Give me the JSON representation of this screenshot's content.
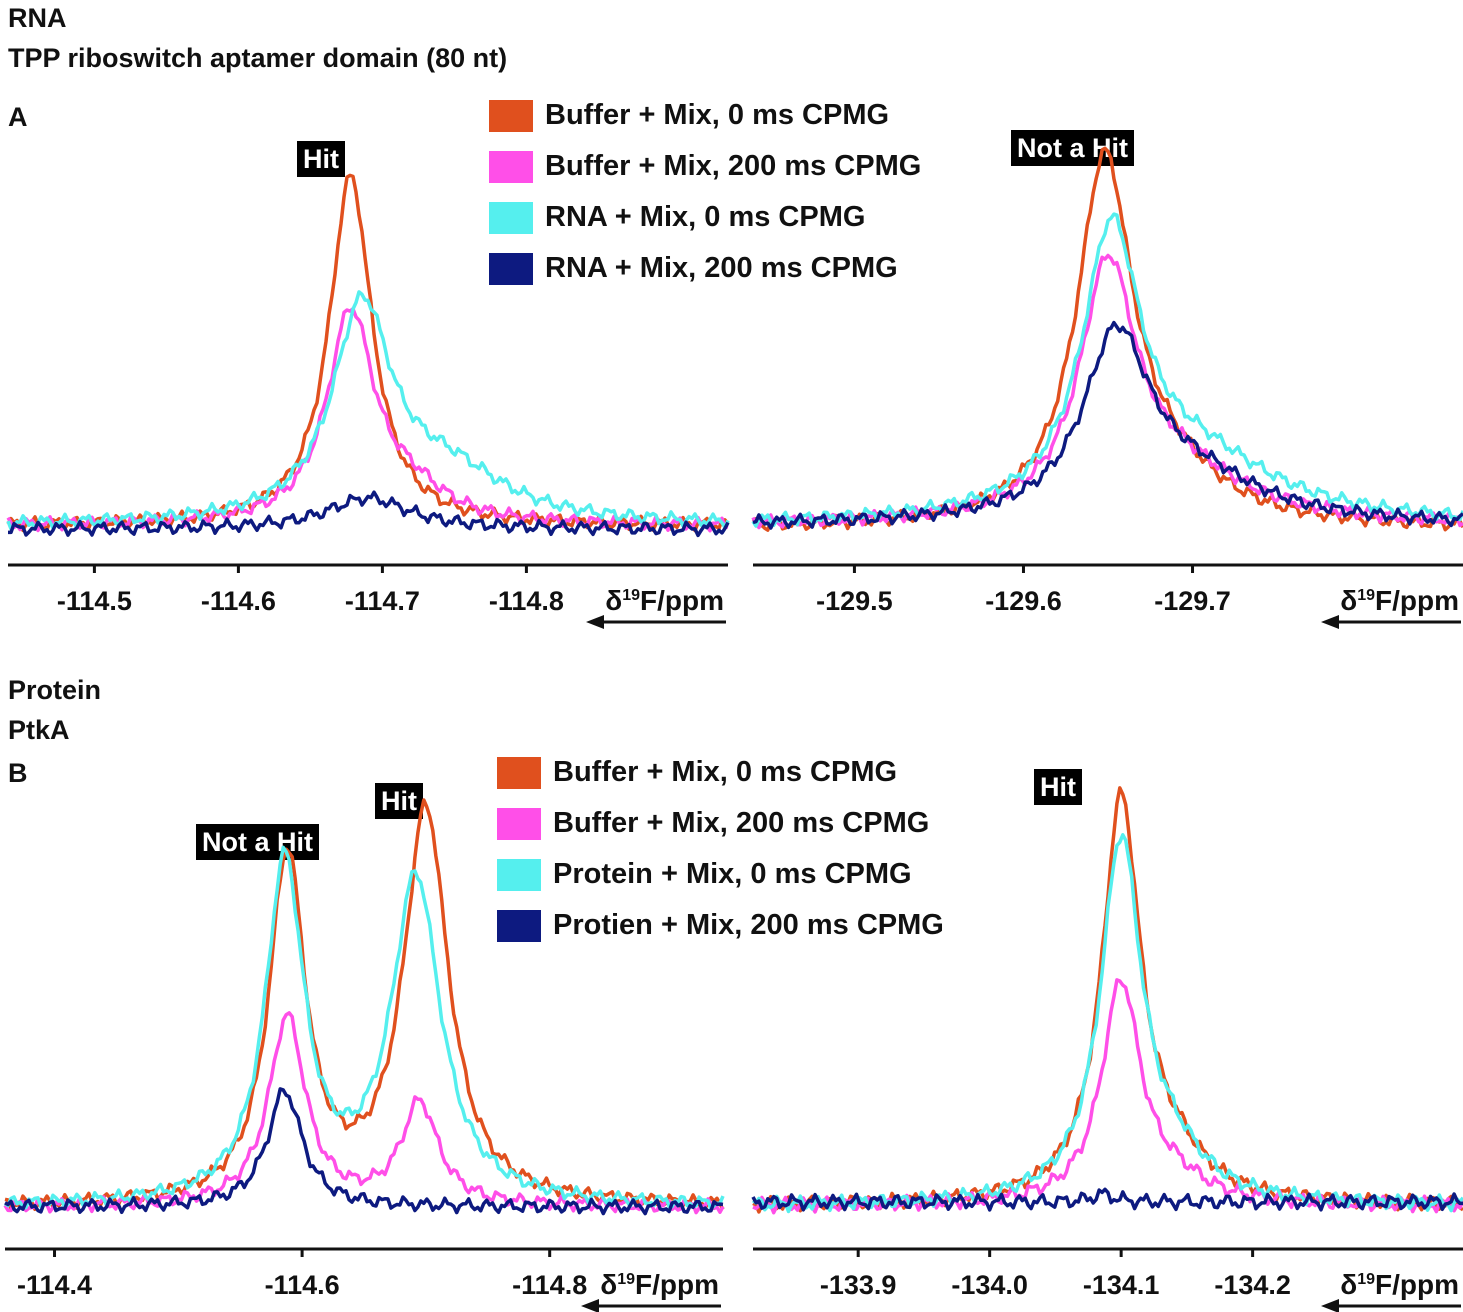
{
  "panelA": {
    "title1": "RNA",
    "title2": "TPP riboswitch aptamer domain (80 nt)",
    "letter": "A",
    "legend": [
      {
        "label": "Buffer + Mix, 0 ms CPMG",
        "color": "#e0501e"
      },
      {
        "label": "Buffer + Mix, 200 ms CPMG",
        "color": "#ff4fe8"
      },
      {
        "label": "RNA + Mix, 0 ms CPMG",
        "color": "#55efee"
      },
      {
        "label": "RNA + Mix,  200 ms CPMG",
        "color": "#0d1a80"
      }
    ]
  },
  "panelB": {
    "title1": "Protein",
    "title2": "PtkA",
    "letter": "B",
    "legend": [
      {
        "label": "Buffer + Mix, 0 ms CPMG",
        "color": "#e0501e"
      },
      {
        "label": "Buffer + Mix, 200 ms CPMG",
        "color": "#ff4fe8"
      },
      {
        "label": "Protein + Mix, 0 ms CPMG",
        "color": "#55efee"
      },
      {
        "label": "Protien + Mix,  200 ms CPMG",
        "color": "#0d1a80"
      }
    ]
  },
  "chart_data": [
    {
      "id": "A-left",
      "type": "line",
      "xlabel": "δ19F/ppm",
      "xlim": [
        -114.44,
        -114.94
      ],
      "reversed_axis": true,
      "ticks": [
        -114.5,
        -114.6,
        -114.7,
        -114.8
      ],
      "tick_labels": [
        "-114.5",
        "-114.6",
        "-114.7",
        "-114.8"
      ],
      "annotation": "Hit",
      "series": [
        {
          "name": "Buffer + Mix, 0 ms CPMG",
          "color": "#e0501e",
          "baseline": 0.04,
          "peaks": [
            {
              "center": -114.678,
              "height": 1.0,
              "width": 0.018
            }
          ]
        },
        {
          "name": "Buffer + Mix, 200 ms CPMG",
          "color": "#ff4fe8",
          "baseline": 0.04,
          "peaks": [
            {
              "center": -114.678,
              "height": 0.6,
              "width": 0.02
            },
            {
              "center": -114.72,
              "height": 0.08,
              "width": 0.03
            }
          ]
        },
        {
          "name": "RNA + Mix, 0 ms CPMG",
          "color": "#55efee",
          "baseline": 0.04,
          "peaks": [
            {
              "center": -114.686,
              "height": 0.6,
              "width": 0.025
            },
            {
              "center": -114.745,
              "height": 0.14,
              "width": 0.05
            }
          ]
        },
        {
          "name": "RNA + Mix,  200 ms CPMG",
          "color": "#0d1a80",
          "baseline": 0.03,
          "peaks": [
            {
              "center": -114.69,
              "height": 0.09,
              "width": 0.035
            }
          ]
        }
      ]
    },
    {
      "id": "A-right",
      "type": "line",
      "xlabel": "δ19F/ppm",
      "xlim": [
        -129.44,
        -129.86
      ],
      "reversed_axis": true,
      "ticks": [
        -129.5,
        -129.6,
        -129.7
      ],
      "tick_labels": [
        "-129.5",
        "-129.6",
        "-129.7"
      ],
      "annotation": "Not a Hit",
      "series": [
        {
          "name": "Buffer + Mix, 0 ms CPMG",
          "color": "#e0501e",
          "baseline": 0.03,
          "peaks": [
            {
              "center": -129.648,
              "height": 1.0,
              "width": 0.02
            },
            {
              "center": -129.685,
              "height": 0.12,
              "width": 0.04
            }
          ]
        },
        {
          "name": "Buffer + Mix, 200 ms CPMG",
          "color": "#ff4fe8",
          "baseline": 0.04,
          "peaks": [
            {
              "center": -129.65,
              "height": 0.68,
              "width": 0.02
            },
            {
              "center": -129.69,
              "height": 0.14,
              "width": 0.05
            }
          ]
        },
        {
          "name": "RNA + Mix, 0 ms CPMG",
          "color": "#55efee",
          "baseline": 0.04,
          "peaks": [
            {
              "center": -129.652,
              "height": 0.76,
              "width": 0.021
            },
            {
              "center": -129.7,
              "height": 0.18,
              "width": 0.06
            }
          ]
        },
        {
          "name": "RNA + Mix,  200 ms CPMG",
          "color": "#0d1a80",
          "baseline": 0.04,
          "peaks": [
            {
              "center": -129.655,
              "height": 0.5,
              "width": 0.024
            },
            {
              "center": -129.7,
              "height": 0.12,
              "width": 0.05
            }
          ]
        }
      ]
    },
    {
      "id": "B-left",
      "type": "line",
      "xlabel": "δ19F/ppm",
      "xlim": [
        -114.36,
        -114.94
      ],
      "reversed_axis": true,
      "ticks": [
        -114.4,
        -114.6,
        -114.8
      ],
      "tick_labels": [
        "-114.4",
        "-114.6",
        "-114.8"
      ],
      "annotation": [
        "Not a Hit",
        "Hit"
      ],
      "series": [
        {
          "name": "Buffer + Mix, 0 ms CPMG",
          "color": "#e0501e",
          "baseline": 0.03,
          "peaks": [
            {
              "center": -114.588,
              "height": 0.95,
              "width": 0.018
            },
            {
              "center": -114.7,
              "height": 1.08,
              "width": 0.022
            }
          ]
        },
        {
          "name": "Buffer + Mix, 200 ms CPMG",
          "color": "#ff4fe8",
          "baseline": 0.03,
          "peaks": [
            {
              "center": -114.588,
              "height": 0.52,
              "width": 0.018
            },
            {
              "center": -114.695,
              "height": 0.28,
              "width": 0.018
            }
          ]
        },
        {
          "name": "Protein + Mix, 0 ms CPMG",
          "color": "#55efee",
          "baseline": 0.03,
          "peaks": [
            {
              "center": -114.586,
              "height": 0.93,
              "width": 0.019
            },
            {
              "center": -114.692,
              "height": 0.89,
              "width": 0.024
            }
          ]
        },
        {
          "name": "Protien + Mix,  200 ms CPMG",
          "color": "#0d1a80",
          "baseline": 0.03,
          "peaks": [
            {
              "center": -114.586,
              "height": 0.32,
              "width": 0.017
            }
          ]
        }
      ]
    },
    {
      "id": "B-right",
      "type": "line",
      "xlabel": "δ19F/ppm",
      "xlim": [
        -133.82,
        -134.36
      ],
      "reversed_axis": true,
      "ticks": [
        -133.9,
        -134.0,
        -134.1,
        -134.2
      ],
      "tick_labels": [
        "-133.9",
        "-134.0",
        "-134.1",
        "-134.2"
      ],
      "annotation": "Hit",
      "series": [
        {
          "name": "Buffer + Mix, 0 ms CPMG",
          "color": "#e0501e",
          "baseline": 0.03,
          "peaks": [
            {
              "center": -134.1,
              "height": 1.0,
              "width": 0.018
            },
            {
              "center": -134.14,
              "height": 0.09,
              "width": 0.03
            }
          ]
        },
        {
          "name": "Buffer + Mix, 200 ms CPMG",
          "color": "#ff4fe8",
          "baseline": 0.03,
          "peaks": [
            {
              "center": -134.1,
              "height": 0.55,
              "width": 0.018
            },
            {
              "center": -134.14,
              "height": 0.05,
              "width": 0.03
            }
          ]
        },
        {
          "name": "Protein + Mix, 0 ms CPMG",
          "color": "#55efee",
          "baseline": 0.03,
          "peaks": [
            {
              "center": -134.1,
              "height": 0.9,
              "width": 0.019
            },
            {
              "center": -134.14,
              "height": 0.09,
              "width": 0.03
            }
          ]
        },
        {
          "name": "Protien + Mix,  200 ms CPMG",
          "color": "#0d1a80",
          "baseline": 0.04,
          "peaks": [
            {
              "center": -134.086,
              "height": 0.02,
              "width": 0.01
            }
          ]
        }
      ]
    }
  ]
}
